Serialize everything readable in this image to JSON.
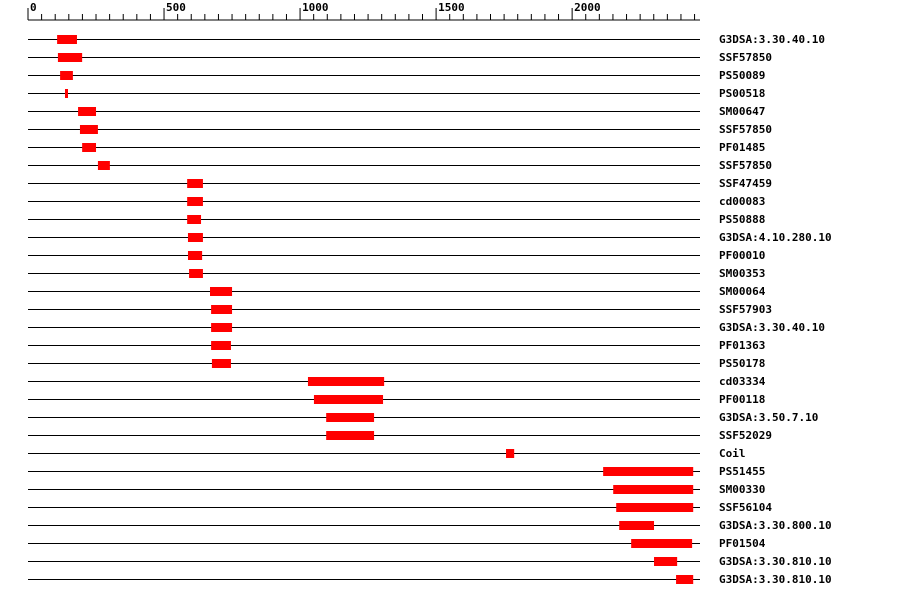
{
  "chart_data": {
    "type": "range",
    "categories": [
      "G3DSA:3.30.40.10",
      "SSF57850",
      "PS50089",
      "PS00518",
      "SM00647",
      "SSF57850",
      "PF01485",
      "SSF57850",
      "SSF47459",
      "cd00083",
      "PS50888",
      "G3DSA:4.10.280.10",
      "PF00010",
      "SM00353",
      "SM00064",
      "SSF57903",
      "G3DSA:3.30.40.10",
      "PF01363",
      "PS50178",
      "cd03334",
      "PF00118",
      "G3DSA:3.50.7.10",
      "SSF52029",
      "Coil",
      "PS51455",
      "SM00330",
      "SSF56104",
      "G3DSA:3.30.800.10",
      "PF01504",
      "G3DSA:3.30.810.10",
      "G3DSA:3.30.810.10"
    ],
    "starts": [
      107,
      110,
      118,
      136,
      184,
      191,
      199,
      257,
      585,
      585,
      585,
      588,
      588,
      592,
      669,
      673,
      673,
      673,
      676,
      1029,
      1051,
      1096,
      1096,
      1757,
      2114,
      2151,
      2162,
      2173,
      2217,
      2301,
      2382
    ],
    "ends": [
      180,
      199,
      165,
      147,
      250,
      257,
      250,
      301,
      643,
      643,
      636,
      643,
      640,
      643,
      750,
      750,
      750,
      746,
      746,
      1309,
      1305,
      1272,
      1272,
      1787,
      2445,
      2445,
      2445,
      2301,
      2441,
      2386,
      2445
    ],
    "color": "#ff0000",
    "xlim": [
      0,
      2470
    ],
    "xticks": [
      0,
      500,
      1000,
      1500,
      2000
    ],
    "xminor_ticks": [
      50,
      100,
      150,
      200,
      250,
      300,
      350,
      400,
      450,
      550,
      600,
      650,
      700,
      750,
      800,
      850,
      900,
      950,
      1050,
      1100,
      1150,
      1200,
      1250,
      1300,
      1350,
      1400,
      1450,
      1550,
      1600,
      1650,
      1700,
      1750,
      1800,
      1850,
      1900,
      1950,
      2050,
      2100,
      2150,
      2200,
      2250,
      2300,
      2350,
      2400,
      2450
    ]
  }
}
